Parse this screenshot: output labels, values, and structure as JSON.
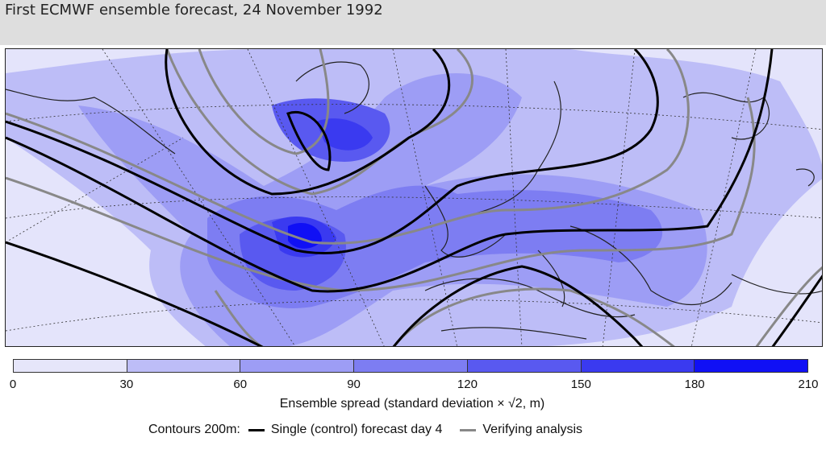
{
  "title": "First ECMWF ensemble forecast, 24 November 1992",
  "colorbar": {
    "ticks": [
      "0",
      "30",
      "60",
      "90",
      "120",
      "150",
      "180",
      "210"
    ],
    "colors": [
      "#e6e6fa",
      "#bdbdf7",
      "#9d9df5",
      "#7d7df2",
      "#5959f0",
      "#3a3af0",
      "#1010f5"
    ],
    "label": "Ensemble spread (standard deviation × √2, m)"
  },
  "legend": {
    "prefix": "Contours 200m:",
    "control": "Single (control) forecast day 4",
    "analysis": "Verifying analysis",
    "control_color": "#000000",
    "analysis_color": "#888888"
  }
}
